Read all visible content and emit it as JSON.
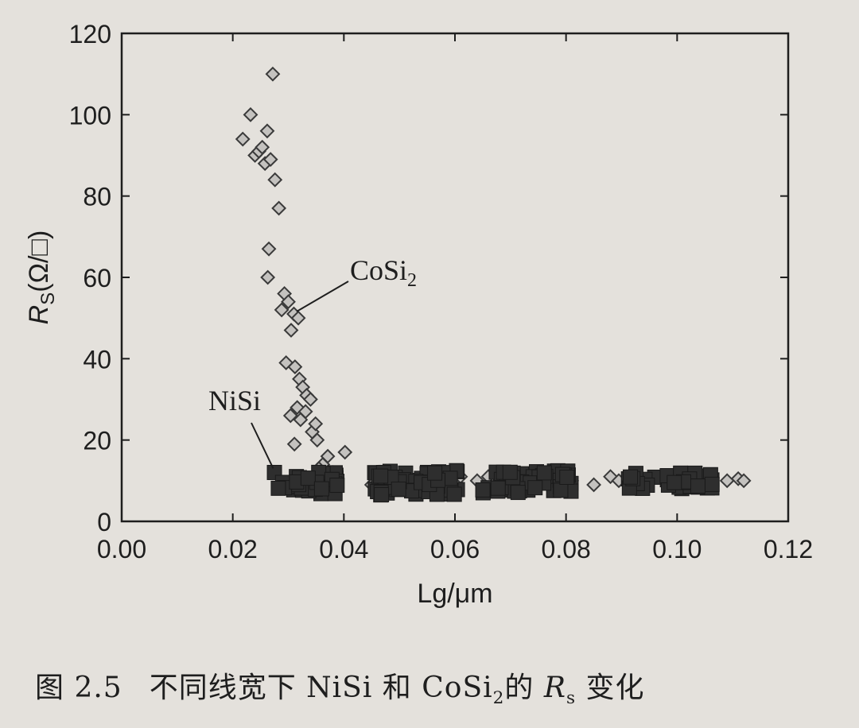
{
  "chart_data": {
    "type": "scatter",
    "xlabel": "Lg/μm",
    "ylabel": {
      "var": "R",
      "sub": "S",
      "unit": "(Ω/□)"
    },
    "xlim": [
      0,
      0.12
    ],
    "ylim": [
      0,
      120
    ],
    "x_ticks": [
      "0.00",
      "0.02",
      "0.04",
      "0.06",
      "0.08",
      "0.10",
      "0.12"
    ],
    "y_ticks": [
      "0",
      "20",
      "40",
      "60",
      "80",
      "100",
      "120"
    ],
    "grid": false,
    "legend": "none",
    "annotations": [
      {
        "label": "CoSi",
        "sub": "2",
        "target": [
          0.0315,
          52
        ]
      },
      {
        "label": "NiSi",
        "target": [
          0.027,
          13
        ]
      }
    ],
    "series": [
      {
        "name": "CoSi2",
        "marker": "diamond",
        "color": "#8a8a8a",
        "points": [
          [
            0.0218,
            94
          ],
          [
            0.0232,
            100
          ],
          [
            0.024,
            90
          ],
          [
            0.0247,
            91
          ],
          [
            0.0253,
            92
          ],
          [
            0.0258,
            88
          ],
          [
            0.0262,
            96
          ],
          [
            0.0268,
            89
          ],
          [
            0.0272,
            110
          ],
          [
            0.0276,
            84
          ],
          [
            0.0283,
            77
          ],
          [
            0.0265,
            67
          ],
          [
            0.0263,
            60
          ],
          [
            0.0293,
            56
          ],
          [
            0.0288,
            52
          ],
          [
            0.03,
            54
          ],
          [
            0.031,
            51
          ],
          [
            0.0318,
            50
          ],
          [
            0.0305,
            47
          ],
          [
            0.0296,
            39
          ],
          [
            0.0312,
            38
          ],
          [
            0.032,
            35
          ],
          [
            0.0326,
            33
          ],
          [
            0.0333,
            31
          ],
          [
            0.034,
            30
          ],
          [
            0.0316,
            28
          ],
          [
            0.0304,
            26
          ],
          [
            0.0322,
            25
          ],
          [
            0.0331,
            27
          ],
          [
            0.0343,
            22
          ],
          [
            0.0349,
            24
          ],
          [
            0.0352,
            20
          ],
          [
            0.0311,
            19
          ],
          [
            0.0362,
            14
          ],
          [
            0.0371,
            16
          ],
          [
            0.038,
            12
          ],
          [
            0.0402,
            17
          ],
          [
            0.0355,
            13
          ],
          [
            0.045,
            9
          ],
          [
            0.061,
            11
          ],
          [
            0.064,
            10
          ],
          [
            0.066,
            11
          ],
          [
            0.079,
            9
          ],
          [
            0.081,
            10
          ],
          [
            0.085,
            9
          ],
          [
            0.088,
            11
          ],
          [
            0.0895,
            10
          ],
          [
            0.109,
            10
          ],
          [
            0.111,
            10.5
          ],
          [
            0.112,
            10
          ]
        ]
      },
      {
        "name": "NiSi",
        "marker": "square",
        "color": "#2e2e2e",
        "clusters": [
          {
            "x": [
              0.0275,
              0.0395
            ],
            "y": [
              6.5,
              12.5
            ],
            "n": 38
          },
          {
            "x": [
              0.0455,
              0.0605
            ],
            "y": [
              6.5,
              12.5
            ],
            "n": 70
          },
          {
            "x": [
              0.065,
              0.081
            ],
            "y": [
              7,
              12.5
            ],
            "n": 55
          },
          {
            "x": [
              0.0905,
              0.107
            ],
            "y": [
              8,
              12
            ],
            "n": 45
          }
        ]
      }
    ]
  },
  "caption": {
    "fig_no": "图 2.5",
    "text_before": "不同线宽下 NiSi 和 CoSi",
    "sub": "2",
    "text_mid": "的 ",
    "var": "R",
    "var_sub": "s",
    "text_after": " 变化"
  }
}
